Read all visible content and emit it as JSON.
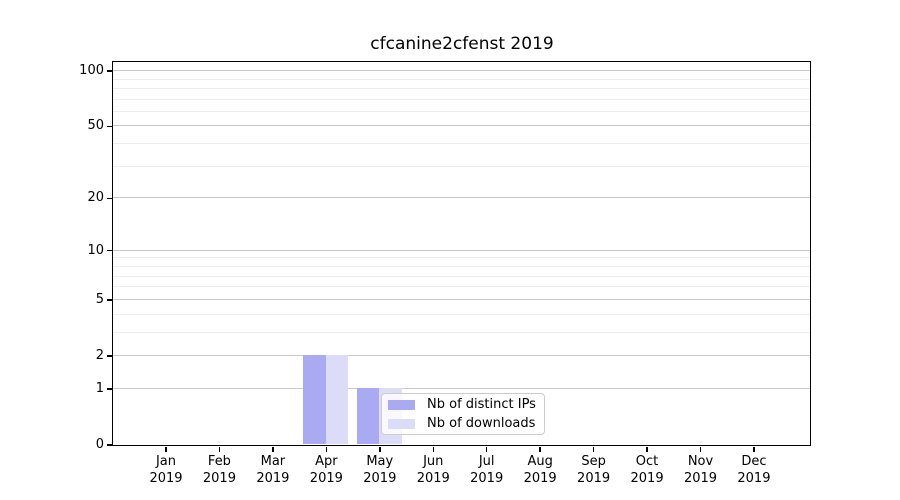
{
  "chart_data": {
    "type": "bar",
    "title": "cfcanine2cfenst 2019",
    "categories": [
      "Jan",
      "Feb",
      "Mar",
      "Apr",
      "May",
      "Jun",
      "Jul",
      "Aug",
      "Sep",
      "Oct",
      "Nov",
      "Dec"
    ],
    "category_sublabel": "2019",
    "series": [
      {
        "name": "Nb of distinct IPs",
        "color": "#aaaaf2",
        "values": [
          0,
          0,
          0,
          2,
          1,
          0,
          0,
          0,
          0,
          0,
          0,
          0
        ]
      },
      {
        "name": "Nb of downloads",
        "color": "#dcdcf9",
        "values": [
          0,
          0,
          0,
          2,
          1,
          0,
          0,
          0,
          0,
          0,
          0,
          0
        ]
      }
    ],
    "yscale": "log1p",
    "ylim": [
      0,
      112
    ],
    "yticks": [
      0,
      1,
      2,
      5,
      10,
      20,
      50,
      100
    ],
    "yticks_minor": [
      3,
      4,
      6,
      7,
      8,
      9,
      30,
      40,
      60,
      70,
      80,
      90
    ],
    "grid": "horizontal",
    "legend_position": "inside-lower-center",
    "colors": {
      "grid_major": "#c9c9c9",
      "grid_minor": "#ededed",
      "axis": "#000000",
      "background": "#ffffff",
      "legend_border": "#cccccc"
    }
  }
}
